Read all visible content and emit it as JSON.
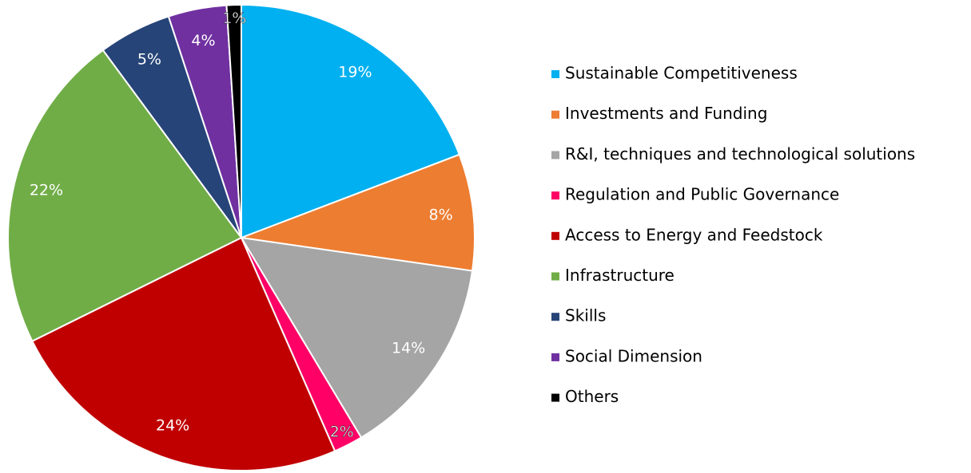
{
  "chart_data": {
    "type": "pie",
    "categories": [
      "Sustainable Competitiveness",
      "Investments and Funding",
      "R&I, techniques and technological solutions",
      "Regulation and Public Governance",
      "Access to Energy and Feedstock",
      "Infrastructure",
      "Skills",
      "Social Dimension",
      "Others"
    ],
    "values": [
      19,
      8,
      14,
      2,
      24,
      22,
      5,
      4,
      1
    ],
    "value_labels": [
      "19%",
      "8%",
      "14%",
      "2%",
      "24%",
      "22%",
      "5%",
      "4%",
      "1%"
    ],
    "colors": [
      "#00b0f0",
      "#ed7d31",
      "#a5a5a5",
      "#ff0066",
      "#c00000",
      "#70ad47",
      "#264478",
      "#7030a0",
      "#000000"
    ],
    "legend": "right"
  }
}
